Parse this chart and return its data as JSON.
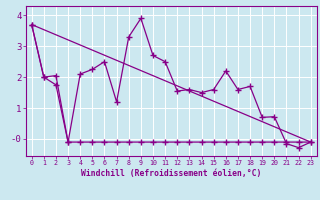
{
  "xlabel": "Windchill (Refroidissement éolien,°C)",
  "bg_color": "#cce8f0",
  "line_color": "#880088",
  "grid_color": "#ffffff",
  "xlim": [
    -0.5,
    23.5
  ],
  "ylim": [
    -0.55,
    4.3
  ],
  "yticks": [
    0,
    1,
    2,
    3,
    4
  ],
  "ytick_labels": [
    "-0",
    "1",
    "2",
    "3",
    "4"
  ],
  "xticks": [
    0,
    1,
    2,
    3,
    4,
    5,
    6,
    7,
    8,
    9,
    10,
    11,
    12,
    13,
    14,
    15,
    16,
    17,
    18,
    19,
    20,
    21,
    22,
    23
  ],
  "trend_x": [
    0,
    23
  ],
  "trend_y": [
    3.7,
    -0.1
  ],
  "series2_x": [
    0,
    1,
    2,
    3,
    4,
    5,
    6,
    7,
    8,
    9,
    10,
    11,
    12,
    13,
    14,
    15,
    16,
    17,
    18,
    19,
    20,
    21,
    22,
    23
  ],
  "series2_y": [
    3.7,
    2.0,
    2.05,
    -0.1,
    2.1,
    2.25,
    2.5,
    1.2,
    3.3,
    3.9,
    2.7,
    2.5,
    1.55,
    1.6,
    1.5,
    1.6,
    2.2,
    1.6,
    1.7,
    0.7,
    0.72,
    -0.15,
    -0.28,
    -0.1
  ],
  "series3_x": [
    0,
    1,
    2,
    3,
    4,
    5,
    6,
    7,
    8,
    9,
    10,
    11,
    12,
    13,
    14,
    15,
    16,
    17,
    18,
    19,
    20,
    21,
    22,
    23
  ],
  "series3_y": [
    3.7,
    2.0,
    1.75,
    -0.1,
    -0.1,
    -0.1,
    -0.1,
    -0.1,
    -0.1,
    -0.1,
    -0.1,
    -0.1,
    -0.1,
    -0.1,
    -0.1,
    -0.1,
    -0.1,
    -0.1,
    -0.1,
    -0.1,
    -0.1,
    -0.1,
    -0.1,
    -0.1
  ]
}
